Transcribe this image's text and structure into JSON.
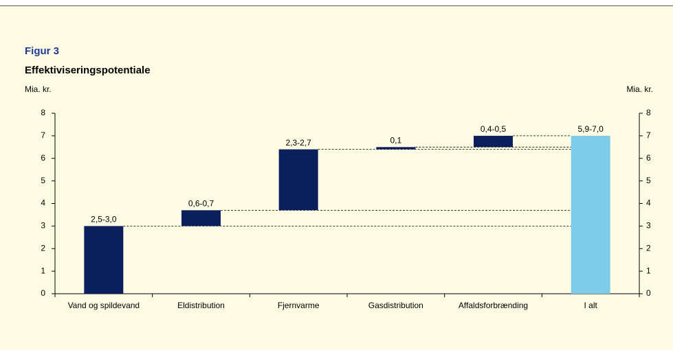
{
  "chart_data": {
    "type": "waterfall",
    "figure_label": "Figur 3",
    "title": "Effektiviseringspotentiale",
    "y_label": "Mia. kr.",
    "y2_label": "Mia. kr.",
    "categories": [
      "Vand og spildevand",
      "Eldistribution",
      "Fjernvarme",
      "Gasdistribution",
      "Affaldsforbrænding",
      "I alt"
    ],
    "values": [
      3.0,
      0.7,
      2.7,
      0.1,
      0.5,
      7.0
    ],
    "value_labels": [
      "2,5-3,0",
      "0,6-0,7",
      "2,3-2,7",
      "0,1",
      "0,4-0,5",
      "5,9-7,0"
    ],
    "is_total": [
      false,
      false,
      false,
      false,
      false,
      true
    ],
    "color": "#0b1f5c",
    "total_color": "#7ecbea",
    "ylim": [
      0,
      8
    ],
    "yticks": [
      0,
      1,
      2,
      3,
      4,
      5,
      6,
      7,
      8
    ],
    "y2lim": [
      0,
      8
    ],
    "y2ticks": [
      0,
      1,
      2,
      3,
      4,
      5,
      6,
      7,
      8
    ]
  }
}
